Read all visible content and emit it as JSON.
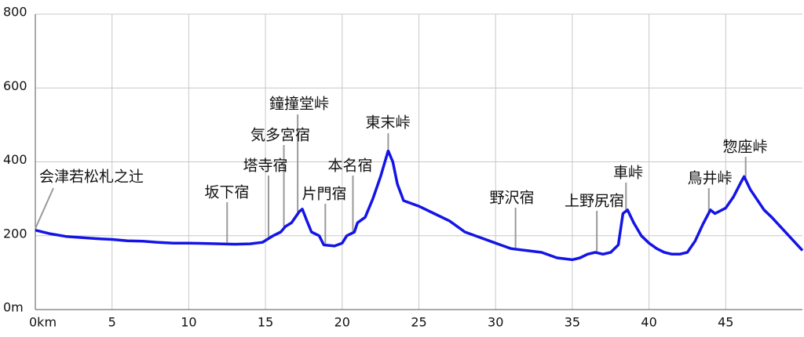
{
  "chart_data": {
    "type": "line",
    "x": [
      0,
      1,
      2,
      3,
      4,
      5,
      6,
      7,
      8,
      9,
      10,
      11,
      12,
      13,
      14,
      14.8,
      15.5,
      16,
      16.3,
      16.7,
      17.2,
      17.4,
      17.7,
      18,
      18.5,
      18.8,
      19.5,
      20,
      20.3,
      20.8,
      21,
      21.5,
      22,
      22.5,
      23,
      23.3,
      23.6,
      24,
      25,
      26,
      27,
      28,
      29,
      30,
      31,
      32,
      33,
      34,
      35,
      35.5,
      36,
      36.5,
      37,
      37.5,
      38,
      38.3,
      38.6,
      39,
      39.5,
      40,
      40.5,
      41,
      41.5,
      42,
      42.5,
      43,
      43.5,
      44,
      44.3,
      45,
      45.5,
      46,
      46.2,
      46.6,
      47.5,
      48,
      49,
      50
    ],
    "values": [
      215,
      205,
      198,
      195,
      192,
      190,
      186,
      185,
      182,
      180,
      180,
      179,
      178,
      177,
      178,
      182,
      200,
      210,
      225,
      235,
      265,
      272,
      240,
      210,
      200,
      175,
      172,
      180,
      200,
      210,
      235,
      250,
      300,
      360,
      430,
      400,
      340,
      295,
      280,
      260,
      240,
      210,
      195,
      180,
      165,
      160,
      155,
      140,
      135,
      140,
      150,
      155,
      150,
      155,
      175,
      260,
      270,
      235,
      200,
      180,
      165,
      155,
      150,
      150,
      155,
      185,
      230,
      270,
      260,
      275,
      305,
      345,
      360,
      325,
      270,
      250,
      205,
      160
    ],
    "color": "#1414e6",
    "xlim": [
      0,
      50
    ],
    "ylim": [
      0,
      800
    ],
    "xticks": [
      {
        "value": 0,
        "label": "0km"
      },
      5,
      10,
      15,
      20,
      25,
      30,
      35,
      40,
      45
    ],
    "yticks": [
      {
        "value": 0,
        "label": "0m"
      },
      200,
      400,
      600,
      800
    ],
    "grid": true,
    "annotations": [
      {
        "text": "会津若松札之辻",
        "x": 0
      },
      {
        "text": "坂下宿",
        "x": 12.5
      },
      {
        "text": "塔寺宿",
        "x": 15.2
      },
      {
        "text": "気多宮宿",
        "x": 16.2
      },
      {
        "text": "鐘撞堂峠",
        "x": 17.1
      },
      {
        "text": "片門宿",
        "x": 18.9
      },
      {
        "text": "本名宿",
        "x": 20.7
      },
      {
        "text": "東末峠",
        "x": 23
      },
      {
        "text": "野沢宿",
        "x": 31.3
      },
      {
        "text": "上野尻宿",
        "x": 36.6
      },
      {
        "text": "車峠",
        "x": 38.5
      },
      {
        "text": "鳥井峠",
        "x": 43.9
      },
      {
        "text": "惣座峠",
        "x": 46.3
      }
    ]
  }
}
